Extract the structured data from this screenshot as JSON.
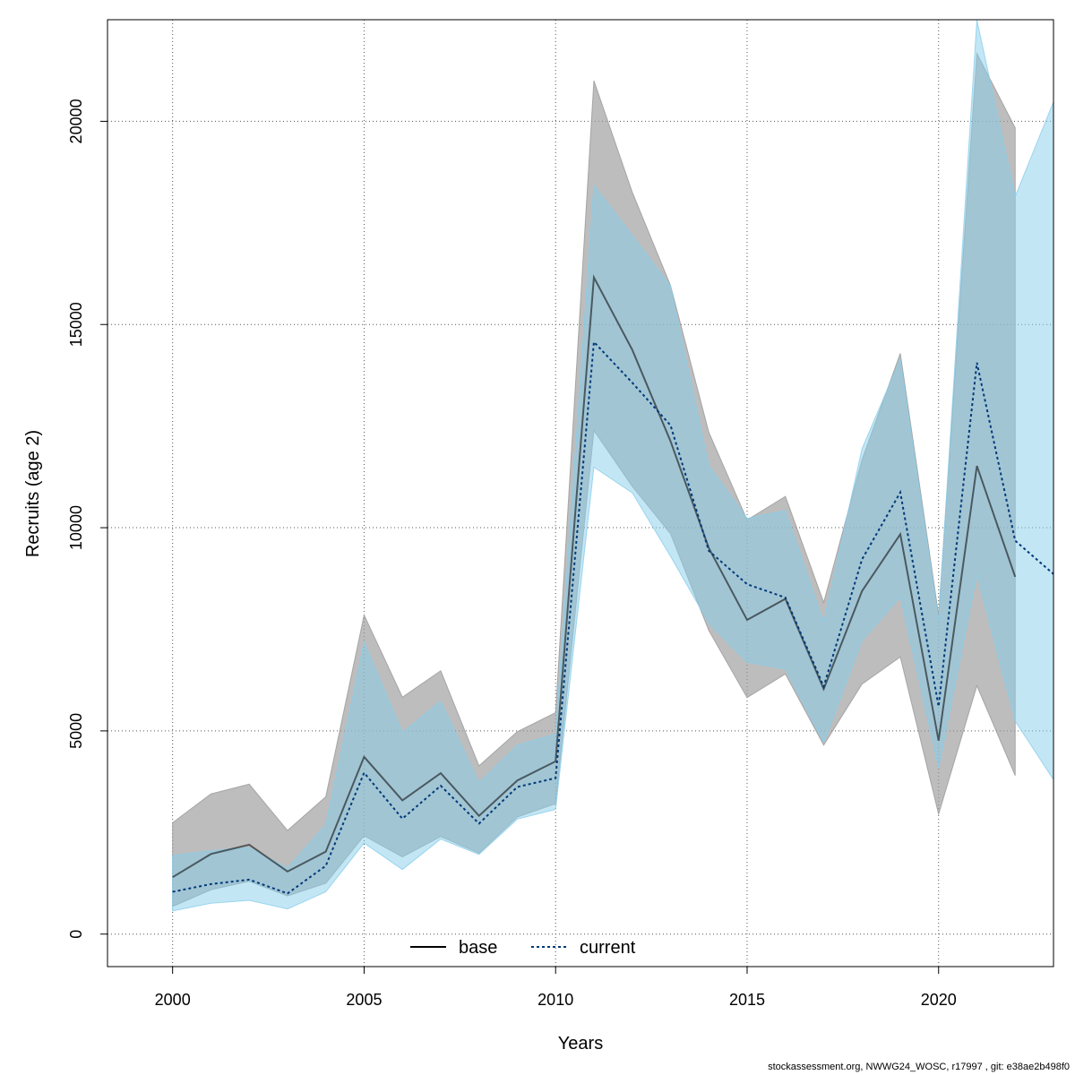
{
  "chart_data": {
    "type": "line",
    "xlabel": "Years",
    "ylabel": "Recruits (age 2)",
    "xlim": [
      1998.3,
      2023
    ],
    "ylim": [
      -800,
      22500
    ],
    "x_ticks": [
      2000,
      2005,
      2010,
      2015,
      2020
    ],
    "y_ticks": [
      0,
      5000,
      10000,
      15000,
      20000
    ],
    "grid": true,
    "legend_position": "bottom-center",
    "colors": {
      "base_band": "#999999",
      "base_line": "#000000",
      "current_band": "#87ceeb",
      "current_line": "#003a78",
      "grid": "#555555"
    },
    "series": [
      {
        "name": "base",
        "line_style": "solid",
        "x": [
          2000,
          2001,
          2002,
          2003,
          2004,
          2005,
          2006,
          2007,
          2008,
          2009,
          2010,
          2011,
          2012,
          2013,
          2014,
          2015,
          2016,
          2017,
          2018,
          2019,
          2020,
          2021,
          2022
        ],
        "values": [
          1400,
          1970,
          2200,
          1540,
          2030,
          4360,
          3290,
          3960,
          2910,
          3780,
          4250,
          16160,
          14380,
          12130,
          9500,
          7730,
          8250,
          6030,
          8440,
          9840,
          4760,
          11520,
          8790
        ],
        "lower": [
          680,
          1090,
          1300,
          940,
          1250,
          2420,
          1900,
          2400,
          1990,
          2880,
          3210,
          12390,
          11020,
          9850,
          7470,
          5820,
          6400,
          4650,
          6150,
          6820,
          2950,
          6110,
          3900
        ],
        "upper": [
          2740,
          3450,
          3690,
          2550,
          3380,
          7850,
          5830,
          6480,
          4140,
          4980,
          5450,
          21000,
          18260,
          15960,
          12350,
          10190,
          10770,
          8160,
          11670,
          14290,
          7850,
          21670,
          19840
        ]
      },
      {
        "name": "current",
        "line_style": "dotted",
        "x": [
          2000,
          2001,
          2002,
          2003,
          2004,
          2005,
          2006,
          2007,
          2008,
          2009,
          2010,
          2011,
          2012,
          2013,
          2014,
          2015,
          2016,
          2017,
          2018,
          2019,
          2020,
          2021,
          2022,
          2023
        ],
        "values": [
          1040,
          1230,
          1340,
          1000,
          1680,
          3970,
          2840,
          3650,
          2720,
          3620,
          3840,
          14570,
          13570,
          12520,
          9430,
          8610,
          8280,
          6090,
          9220,
          10870,
          5600,
          14060,
          9680,
          8860
        ],
        "lower": [
          570,
          760,
          830,
          620,
          1040,
          2240,
          1590,
          2340,
          1960,
          2830,
          3070,
          11490,
          10860,
          9300,
          7650,
          6690,
          6520,
          4710,
          7220,
          8300,
          4090,
          8850,
          5240,
          3800
        ],
        "upper": [
          1930,
          2050,
          2130,
          1620,
          2690,
          7180,
          4960,
          5730,
          3720,
          4650,
          4920,
          18420,
          17190,
          15950,
          11520,
          10230,
          10420,
          7670,
          11940,
          14150,
          7730,
          22490,
          18150,
          20480
        ]
      }
    ]
  },
  "legend": {
    "items": [
      {
        "label": "base"
      },
      {
        "label": "current"
      }
    ]
  },
  "footer": {
    "text": "stockassessment.org, NWWG24_WOSC, r17997 , git: e38ae2b498f0"
  }
}
